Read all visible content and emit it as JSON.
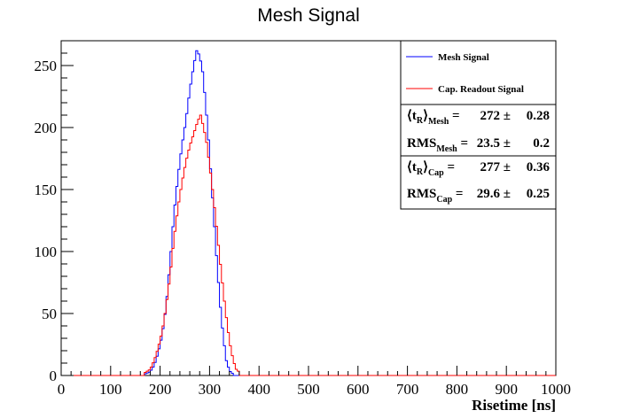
{
  "chart_data": {
    "type": "histogram",
    "title": "Mesh Signal",
    "xlabel": "Risetime [ns]",
    "ylabel": "",
    "xlim": [
      0,
      1000
    ],
    "ylim": [
      0,
      270
    ],
    "x_ticks": [
      "0",
      "100",
      "200",
      "300",
      "400",
      "500",
      "600",
      "700",
      "800",
      "900",
      "1000"
    ],
    "y_ticks": [
      "0",
      "50",
      "100",
      "150",
      "200",
      "250"
    ],
    "bin_width": 4,
    "series": [
      {
        "name": "Mesh Signal",
        "color": "#0000ff",
        "points": [
          [
            168,
            1
          ],
          [
            180,
            3
          ],
          [
            188,
            8
          ],
          [
            196,
            18
          ],
          [
            204,
            32
          ],
          [
            212,
            55
          ],
          [
            220,
            90
          ],
          [
            228,
            130
          ],
          [
            236,
            160
          ],
          [
            244,
            185
          ],
          [
            252,
            205
          ],
          [
            260,
            230
          ],
          [
            268,
            250
          ],
          [
            274,
            262
          ],
          [
            280,
            258
          ],
          [
            286,
            245
          ],
          [
            292,
            220
          ],
          [
            298,
            190
          ],
          [
            304,
            155
          ],
          [
            310,
            120
          ],
          [
            316,
            85
          ],
          [
            322,
            55
          ],
          [
            328,
            30
          ],
          [
            334,
            12
          ],
          [
            340,
            4
          ],
          [
            348,
            1
          ]
        ]
      },
      {
        "name": "Cap. Readout Signal",
        "color": "#ff0000",
        "points": [
          [
            168,
            2
          ],
          [
            180,
            5
          ],
          [
            188,
            12
          ],
          [
            196,
            22
          ],
          [
            204,
            35
          ],
          [
            212,
            55
          ],
          [
            220,
            80
          ],
          [
            228,
            110
          ],
          [
            236,
            135
          ],
          [
            244,
            155
          ],
          [
            252,
            172
          ],
          [
            260,
            185
          ],
          [
            268,
            195
          ],
          [
            276,
            205
          ],
          [
            282,
            210
          ],
          [
            288,
            200
          ],
          [
            294,
            188
          ],
          [
            300,
            170
          ],
          [
            306,
            150
          ],
          [
            312,
            128
          ],
          [
            318,
            105
          ],
          [
            324,
            82
          ],
          [
            330,
            60
          ],
          [
            336,
            40
          ],
          [
            342,
            24
          ],
          [
            348,
            12
          ],
          [
            354,
            5
          ],
          [
            362,
            2
          ]
        ]
      }
    ],
    "legend": {
      "placement": "top-right"
    },
    "stats": [
      {
        "name": "⟨t",
        "sub1": "R",
        "close": "⟩",
        "sub2": "Mesh",
        "value": "272",
        "error": "0.28"
      },
      {
        "name": "RMS",
        "sub1": "",
        "close": "",
        "sub2": "Mesh",
        "value": "23.5",
        "error": "0.2"
      },
      {
        "name": "⟨t",
        "sub1": "R",
        "close": "⟩",
        "sub2": "Cap",
        "value": "277",
        "error": "0.36"
      },
      {
        "name": "RMS",
        "sub1": "",
        "close": "",
        "sub2": "Cap",
        "value": "29.6",
        "error": "0.25"
      }
    ]
  }
}
